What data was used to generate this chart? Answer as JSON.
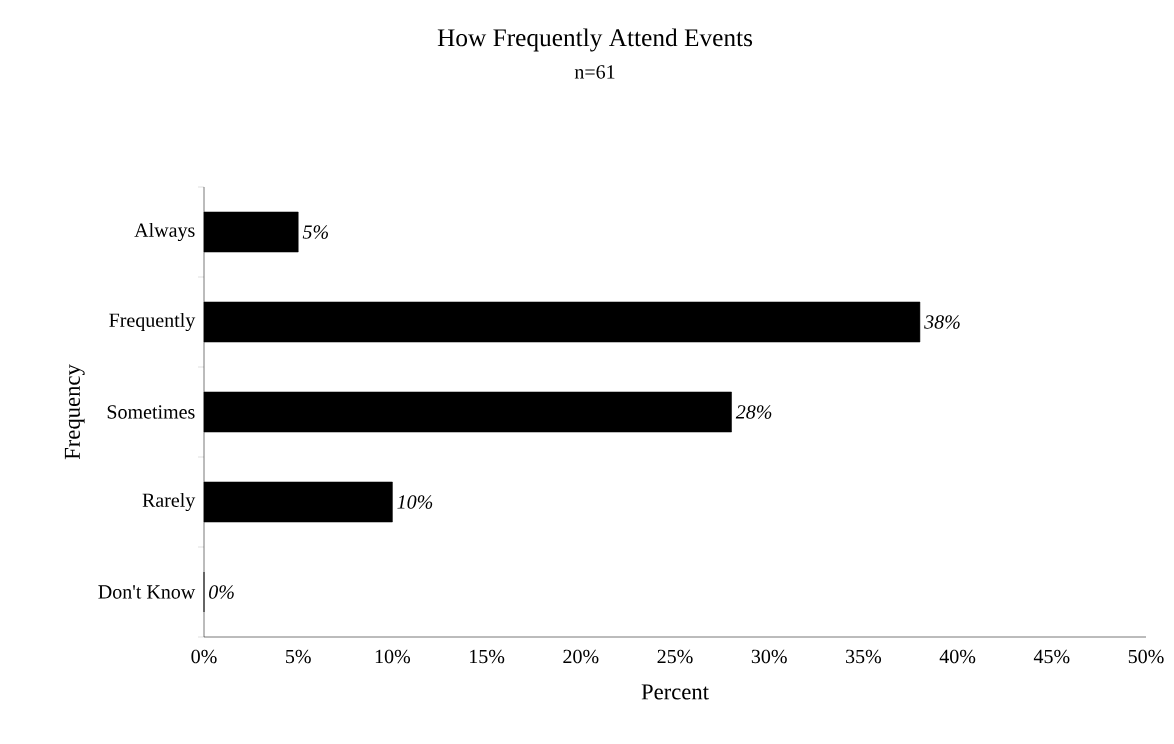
{
  "chart_data": {
    "type": "bar",
    "orientation": "horizontal",
    "title": "How Frequently Attend Events",
    "subtitle": "n=61",
    "xlabel": "Percent",
    "ylabel": "Frequency",
    "categories": [
      "Always",
      "Frequently",
      "Sometimes",
      "Rarely",
      "Don't Know"
    ],
    "values": [
      5,
      38,
      28,
      10,
      0
    ],
    "value_labels": [
      "5%",
      "38%",
      "28%",
      "10%",
      "0%"
    ],
    "color": "#000000",
    "xlim": [
      0,
      50
    ],
    "xticks": [
      {
        "value": 0,
        "label": "0%"
      },
      {
        "value": 5,
        "label": "5%"
      },
      {
        "value": 10,
        "label": "10%"
      },
      {
        "value": 15,
        "label": "15%"
      },
      {
        "value": 20,
        "label": "20%"
      },
      {
        "value": 25,
        "label": "25%"
      },
      {
        "value": 30,
        "label": "30%"
      },
      {
        "value": 35,
        "label": "35%"
      },
      {
        "value": 40,
        "label": "40%"
      },
      {
        "value": 45,
        "label": "45%"
      },
      {
        "value": 50,
        "label": "50%"
      }
    ]
  }
}
